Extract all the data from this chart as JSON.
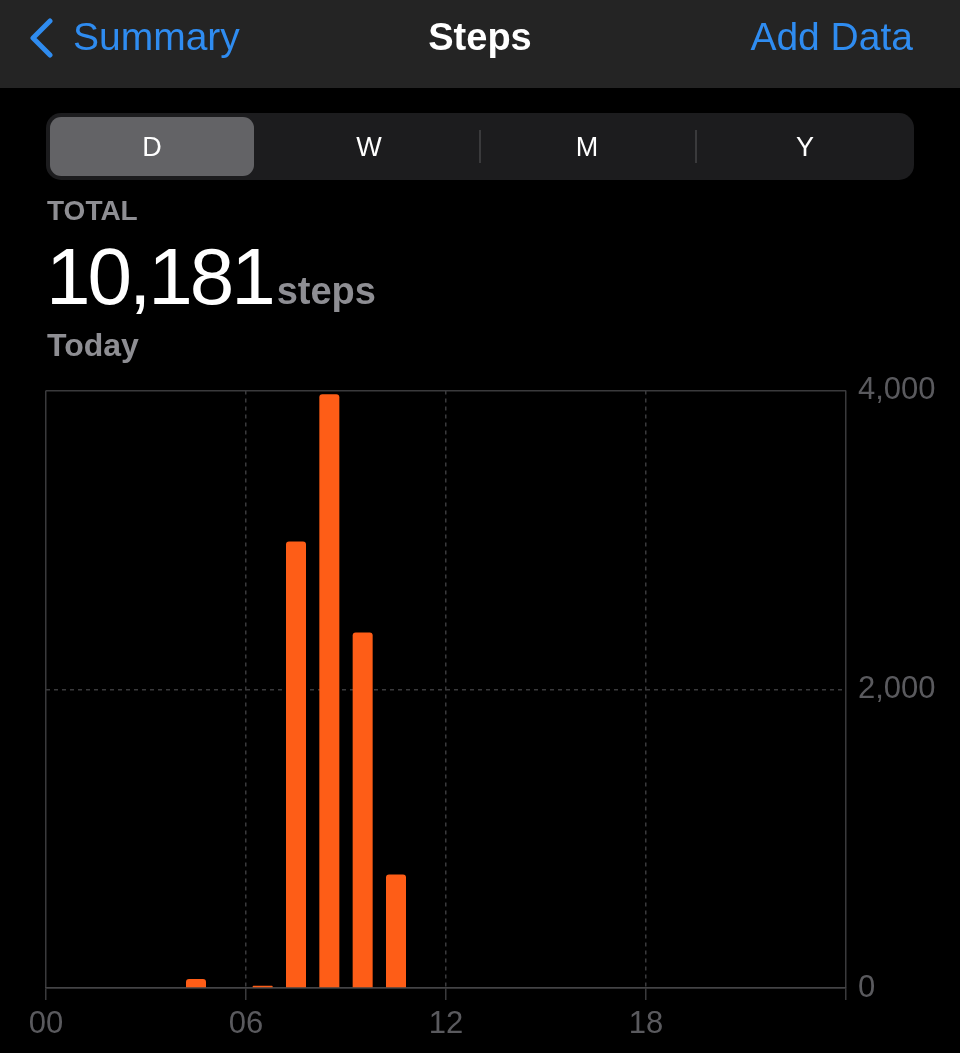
{
  "chart_data": {
    "type": "bar",
    "title": "Steps",
    "annotations": [
      "Summary",
      "Add Data",
      "D",
      "W",
      "M",
      "Y",
      "TOTAL",
      "10,181",
      "steps",
      "Today"
    ],
    "x": [
      4.5,
      6.5,
      7.5,
      8.5,
      9.5,
      10.5
    ],
    "values": [
      60,
      15,
      2990,
      3975,
      2380,
      760
    ],
    "color": "#fe5d17",
    "xlim": [
      0,
      24
    ],
    "xticks": [
      {
        "value": 0,
        "label": "00"
      },
      {
        "value": 6,
        "label": "06"
      },
      {
        "value": 12,
        "label": "12"
      },
      {
        "value": 18,
        "label": "18"
      },
      {
        "value": 24,
        "label": null
      }
    ],
    "ylim": [
      0,
      4000
    ],
    "yticks": [
      0,
      {
        "value": 2000,
        "label": "2,000"
      },
      {
        "value": 4000,
        "label": "4,000"
      }
    ],
    "grid": true
  }
}
